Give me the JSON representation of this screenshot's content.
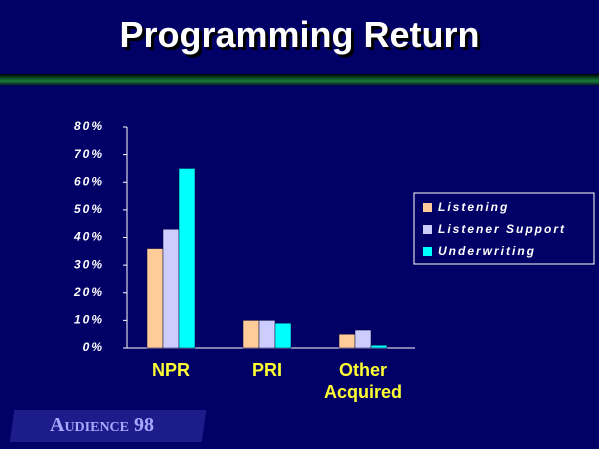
{
  "chart_data": {
    "type": "bar",
    "title": "Programming Return",
    "categories": [
      "NPR",
      "PRI",
      "Other Acquired"
    ],
    "series": [
      {
        "name": "Listening",
        "color": "#ffcc99",
        "values": [
          36,
          10,
          5
        ]
      },
      {
        "name": "Listener Support",
        "color": "#ccccff",
        "values": [
          43,
          10,
          6.5
        ]
      },
      {
        "name": "Underwriting",
        "color": "#00ffff",
        "values": [
          65,
          9,
          1
        ]
      }
    ],
    "ylim": [
      0,
      80
    ],
    "yticks": [
      {
        "value": 0,
        "label": "0%"
      },
      {
        "value": 10,
        "label": "10%"
      },
      {
        "value": 20,
        "label": "20%"
      },
      {
        "value": 30,
        "label": "30%"
      },
      {
        "value": 40,
        "label": "40%"
      },
      {
        "value": 50,
        "label": "50%"
      },
      {
        "value": 60,
        "label": "60%"
      },
      {
        "value": 70,
        "label": "70%"
      },
      {
        "value": 80,
        "label": "80%"
      }
    ],
    "grid": false,
    "legend": "right"
  },
  "footer": {
    "text": "Audience 98"
  }
}
